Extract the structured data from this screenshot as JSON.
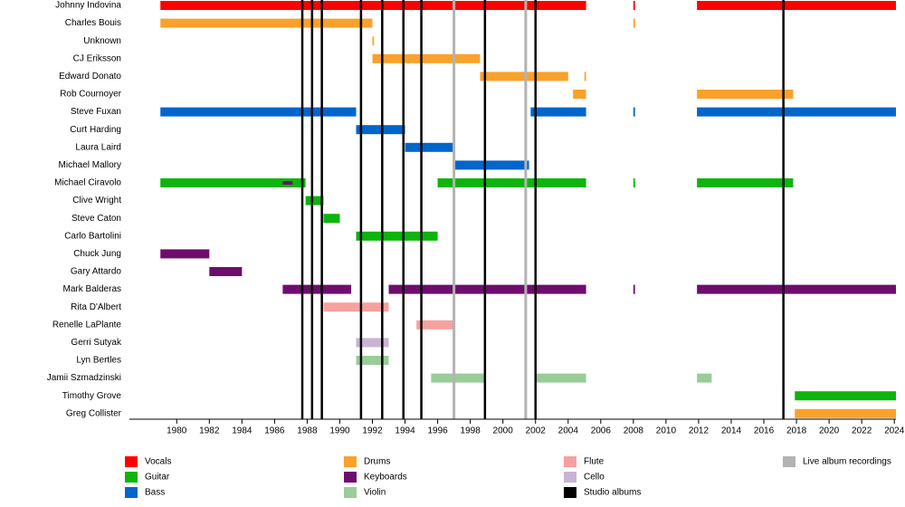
{
  "chart_data": {
    "type": "timeline",
    "xlim": [
      1977.1,
      2024.1
    ],
    "xticks": [
      1980,
      1982,
      1984,
      1986,
      1988,
      1990,
      1992,
      1994,
      1996,
      1998,
      2000,
      2002,
      2004,
      2006,
      2008,
      2010,
      2012,
      2014,
      2016,
      2018,
      2020,
      2022,
      2024
    ],
    "roles": [
      {
        "name": "Vocals",
        "color": "#ff0000"
      },
      {
        "name": "Guitar",
        "color": "#0cb40c"
      },
      {
        "name": "Bass",
        "color": "#0066cc"
      },
      {
        "name": "Drums",
        "color": "#f9a12b"
      },
      {
        "name": "Keyboards",
        "color": "#6e0d6e"
      },
      {
        "name": "Violin",
        "color": "#99cc99"
      },
      {
        "name": "Flute",
        "color": "#f7a0a0"
      },
      {
        "name": "Cello",
        "color": "#c8b4d2"
      }
    ],
    "events": [
      {
        "name": "Studio albums",
        "color": "#000000",
        "values": [
          1987.7,
          1988.3,
          1988.9,
          1991.3,
          1992.6,
          1993.9,
          1995.0,
          1998.9,
          2002.0,
          2017.2
        ]
      },
      {
        "name": "Live album recordings",
        "color": "#b3b3b3",
        "values": [
          1997.0,
          2001.4
        ]
      }
    ],
    "members": [
      {
        "name": "Johnny Indovina",
        "bars": [
          {
            "role": "Vocals",
            "start": 1979,
            "end": 2005.1
          },
          {
            "role": "Vocals",
            "start": 2008,
            "end": 2008.1
          },
          {
            "role": "Vocals",
            "start": 2011.9,
            "end": 2024.1
          }
        ]
      },
      {
        "name": "Charles Bouis",
        "bars": [
          {
            "role": "Drums",
            "start": 1979,
            "end": 1992
          },
          {
            "role": "Drums",
            "start": 2008,
            "end": 2008.1
          }
        ]
      },
      {
        "name": "Unknown",
        "bars": [
          {
            "role": "Drums",
            "start": 1992,
            "end": 1992.1
          }
        ]
      },
      {
        "name": "CJ Eriksson",
        "bars": [
          {
            "role": "Drums",
            "start": 1992,
            "end": 1998.6
          }
        ]
      },
      {
        "name": "Edward Donato",
        "bars": [
          {
            "role": "Drums",
            "start": 1998.6,
            "end": 2004
          },
          {
            "role": "Drums",
            "start": 2005,
            "end": 2005.1
          }
        ]
      },
      {
        "name": "Rob Cournoyer",
        "bars": [
          {
            "role": "Drums",
            "start": 2004.3,
            "end": 2005.1
          },
          {
            "role": "Drums",
            "start": 2011.9,
            "end": 2017.8
          }
        ]
      },
      {
        "name": "Steve Fuxan",
        "bars": [
          {
            "role": "Bass",
            "start": 1979,
            "end": 1991
          },
          {
            "role": "Bass",
            "start": 2001.7,
            "end": 2005.1
          },
          {
            "role": "Bass",
            "start": 2008,
            "end": 2008.1
          },
          {
            "role": "Bass",
            "start": 2011.9,
            "end": 2024.1
          }
        ]
      },
      {
        "name": "Curt Harding",
        "bars": [
          {
            "role": "Bass",
            "start": 1991,
            "end": 1994
          }
        ]
      },
      {
        "name": "Laura Laird",
        "bars": [
          {
            "role": "Bass",
            "start": 1994,
            "end": 1997
          }
        ]
      },
      {
        "name": "Michael Mallory",
        "bars": [
          {
            "role": "Bass",
            "start": 1997,
            "end": 2001.6
          }
        ]
      },
      {
        "name": "Michael Ciravolo",
        "bars": [
          {
            "role": "Guitar",
            "start": 1979,
            "end": 1987.9
          },
          {
            "role": "Keyboards",
            "start": 1986.5,
            "end": 1987.1
          },
          {
            "role": "Guitar",
            "start": 1996,
            "end": 2005.1
          },
          {
            "role": "Guitar",
            "start": 2008,
            "end": 2008.1
          },
          {
            "role": "Guitar",
            "start": 2011.9,
            "end": 2017.8
          }
        ]
      },
      {
        "name": "Clive Wright",
        "bars": [
          {
            "role": "Guitar",
            "start": 1987.9,
            "end": 1989
          }
        ]
      },
      {
        "name": "Steve Caton",
        "bars": [
          {
            "role": "Guitar",
            "start": 1989,
            "end": 1990
          }
        ]
      },
      {
        "name": "Carlo Bartolini",
        "bars": [
          {
            "role": "Guitar",
            "start": 1991,
            "end": 1996
          }
        ]
      },
      {
        "name": "Chuck Jung",
        "bars": [
          {
            "role": "Keyboards",
            "start": 1979,
            "end": 1982
          }
        ]
      },
      {
        "name": "Gary Attardo",
        "bars": [
          {
            "role": "Keyboards",
            "start": 1982,
            "end": 1984
          }
        ]
      },
      {
        "name": "Mark Balderas",
        "bars": [
          {
            "role": "Keyboards",
            "start": 1986.5,
            "end": 1990.7
          },
          {
            "role": "Keyboards",
            "start": 1993,
            "end": 2005.1
          },
          {
            "role": "Keyboards",
            "start": 2008,
            "end": 2008.1
          },
          {
            "role": "Keyboards",
            "start": 2011.9,
            "end": 2024.1
          }
        ]
      },
      {
        "name": "Rita D'Albert",
        "bars": [
          {
            "role": "Flute",
            "start": 1989,
            "end": 1993
          }
        ]
      },
      {
        "name": "Renelle LaPlante",
        "bars": [
          {
            "role": "Flute",
            "start": 1994.7,
            "end": 1997
          }
        ]
      },
      {
        "name": "Gerri Sutyak",
        "bars": [
          {
            "role": "Cello",
            "start": 1991,
            "end": 1993
          }
        ]
      },
      {
        "name": "Lyn Bertles",
        "bars": [
          {
            "role": "Violin",
            "start": 1991,
            "end": 1993
          }
        ]
      },
      {
        "name": "Jamii Szmadzinski",
        "bars": [
          {
            "role": "Violin",
            "start": 1995.6,
            "end": 1998.9
          },
          {
            "role": "Violin",
            "start": 2002,
            "end": 2005.1
          },
          {
            "role": "Violin",
            "start": 2011.9,
            "end": 2012.8
          }
        ]
      },
      {
        "name": "Timothy Grove",
        "bars": [
          {
            "role": "Guitar",
            "start": 2017.9,
            "end": 2024.1
          }
        ]
      },
      {
        "name": "Greg Collister",
        "bars": [
          {
            "role": "Drums",
            "start": 2017.9,
            "end": 2024.1
          }
        ]
      }
    ]
  }
}
